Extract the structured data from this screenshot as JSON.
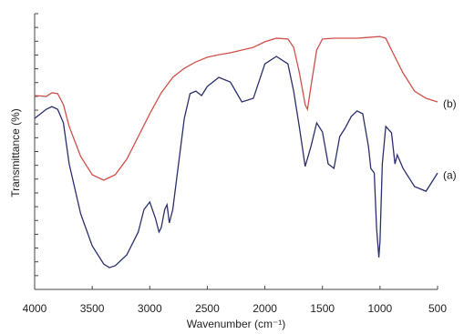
{
  "chart_data": {
    "type": "line",
    "xlabel": "Wavenumber (cm⁻¹)",
    "ylabel": "Transmittance (%)",
    "xlim": [
      4000,
      500
    ],
    "xticks": [
      4000,
      3500,
      3000,
      2500,
      2000,
      1500,
      1000,
      500
    ],
    "ylim": [
      0,
      100
    ],
    "yticks": [
      0,
      5,
      10,
      15,
      20,
      25,
      30,
      35,
      40,
      45,
      50,
      55,
      60,
      65,
      70,
      75,
      80,
      85,
      90,
      95,
      100
    ],
    "series": [
      {
        "name": "(a)",
        "color": "#2b2f6e",
        "x": [
          4000,
          3900,
          3850,
          3800,
          3750,
          3700,
          3600,
          3500,
          3400,
          3350,
          3300,
          3200,
          3100,
          3050,
          3000,
          2950,
          2920,
          2900,
          2870,
          2850,
          2830,
          2800,
          2750,
          2700,
          2650,
          2600,
          2550,
          2500,
          2400,
          2300,
          2200,
          2100,
          2000,
          1900,
          1800,
          1750,
          1700,
          1650,
          1600,
          1550,
          1500,
          1450,
          1400,
          1350,
          1300,
          1250,
          1200,
          1150,
          1100,
          1080,
          1050,
          1030,
          1010,
          1000,
          980,
          950,
          900,
          870,
          850,
          800,
          700,
          600,
          550,
          500
        ],
        "values": [
          62,
          65.3,
          66.3,
          65.3,
          60.4,
          45.5,
          27.4,
          15.8,
          9.2,
          7.9,
          8.6,
          12.5,
          20.8,
          29,
          31.7,
          25.7,
          20.8,
          22.4,
          29,
          30.7,
          24.1,
          29,
          45.5,
          62,
          71,
          71.9,
          70.3,
          73.6,
          76.9,
          75.2,
          68,
          69.3,
          81.8,
          84.5,
          81.8,
          71.9,
          58.7,
          44.6,
          51.8,
          60.4,
          57.1,
          45.5,
          43.9,
          55.4,
          58.7,
          62.7,
          64.7,
          63.7,
          51.8,
          43.9,
          42.2,
          22.4,
          11.6,
          17.5,
          45.5,
          59.1,
          56.8,
          45.5,
          48.8,
          43.9,
          37.3,
          35.6,
          38.9,
          42.2
        ]
      },
      {
        "name": "(b)",
        "color": "#d0504a",
        "x": [
          4000,
          3900,
          3850,
          3800,
          3750,
          3700,
          3600,
          3500,
          3400,
          3300,
          3200,
          3100,
          3000,
          2900,
          2800,
          2700,
          2600,
          2500,
          2400,
          2300,
          2200,
          2100,
          2000,
          1900,
          1800,
          1750,
          1700,
          1650,
          1630,
          1600,
          1550,
          1500,
          1400,
          1300,
          1200,
          1100,
          1000,
          950,
          900,
          800,
          700,
          600,
          500
        ],
        "values": [
          70.3,
          70,
          71.3,
          71,
          67,
          59.1,
          48.2,
          41.6,
          39.6,
          41.6,
          47.2,
          55.4,
          63.7,
          71.3,
          76.9,
          80.2,
          82.5,
          84.2,
          85.1,
          85.8,
          86.8,
          87.8,
          89.8,
          91.1,
          90.8,
          87.8,
          78.5,
          67,
          65.3,
          73.6,
          86.8,
          90.8,
          91.1,
          91.1,
          91.1,
          91.4,
          91.7,
          91.1,
          86.8,
          78.5,
          71.9,
          69.3,
          68
        ]
      }
    ]
  }
}
